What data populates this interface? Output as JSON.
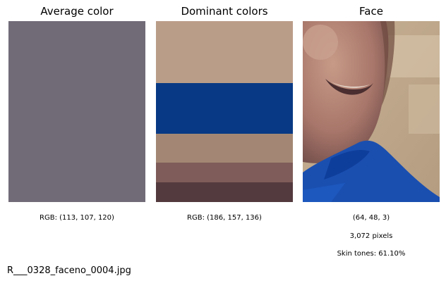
{
  "panels": {
    "average": {
      "title": "Average color",
      "swatch_color": "#716b78",
      "caption": "RGB: (113, 107, 120)"
    },
    "dominant": {
      "title": "Dominant colors",
      "bands": [
        {
          "color": "#ba9d88"
        },
        {
          "color": "#083984"
        },
        {
          "color": "#a38774"
        },
        {
          "color": "#7f5c59"
        },
        {
          "color": "#533a3e"
        }
      ],
      "caption": "RGB: (186, 157, 136)"
    },
    "face": {
      "title": "Face",
      "captions": {
        "shape": "(64, 48, 3)",
        "pixels": "3,072 pixels",
        "skin": "Skin tones: 61.10%"
      }
    }
  },
  "filename": "R___0328_faceno_0004.jpg"
}
